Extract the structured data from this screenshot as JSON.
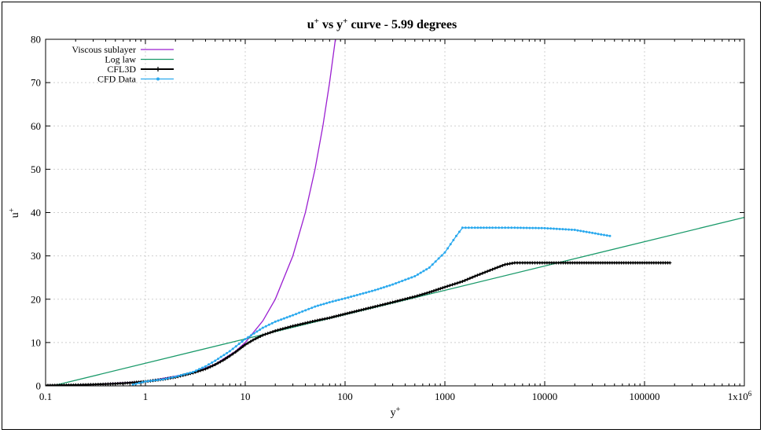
{
  "chart_data": {
    "type": "line",
    "title_main": "u",
    "title_sup1": "+",
    "title_mid": " vs y",
    "title_sup2": "+",
    "title_end": " curve - 5.99 degrees",
    "xlabel_main": "y",
    "xlabel_sup": "+",
    "ylabel_main": "u",
    "ylabel_sup": "+",
    "x_scale": "log",
    "xlim": [
      0.1,
      1000000
    ],
    "ylim": [
      0,
      80
    ],
    "grid": true,
    "legend_position": "top-left",
    "x_ticks": [
      {
        "value": 0.1,
        "label": "0.1"
      },
      {
        "value": 1,
        "label": "1"
      },
      {
        "value": 10,
        "label": "10"
      },
      {
        "value": 100,
        "label": "100"
      },
      {
        "value": 1000,
        "label": "1000"
      },
      {
        "value": 10000,
        "label": "10000"
      },
      {
        "value": 100000,
        "label": "100000"
      }
    ],
    "x_last_tick": {
      "value": 1000000,
      "label_main": "1x10",
      "label_exp": "6"
    },
    "y_ticks": [
      0,
      10,
      20,
      30,
      40,
      50,
      60,
      70,
      80
    ],
    "series": [
      {
        "name": "Viscous sublayer",
        "color": "#9b1fd1",
        "marker": "none",
        "x": [
          0.1,
          0.3,
          1,
          3,
          5,
          8,
          10,
          15,
          20,
          30,
          40,
          50,
          60,
          70,
          80
        ],
        "y": [
          0.1,
          0.3,
          1,
          3,
          5,
          8,
          10,
          15,
          20,
          30,
          40,
          50,
          60,
          70,
          80
        ]
      },
      {
        "name": "Log law",
        "color": "#1a9a6a",
        "marker": "none",
        "x": [
          0.1,
          1000000
        ],
        "y": [
          -0.4,
          38.9
        ]
      },
      {
        "name": "CFL3D",
        "color": "#000000",
        "marker": "plus",
        "x": [
          0.1,
          0.2,
          0.3,
          0.5,
          0.7,
          1,
          1.5,
          2,
          3,
          4,
          5,
          6,
          7,
          8,
          10,
          12,
          15,
          20,
          30,
          50,
          70,
          100,
          200,
          300,
          500,
          700,
          1000,
          1500,
          2000,
          3000,
          4000,
          5000,
          6000,
          10000,
          20000,
          50000,
          100000,
          180000
        ],
        "y": [
          0.1,
          0.2,
          0.3,
          0.5,
          0.7,
          1,
          1.5,
          2,
          3,
          3.9,
          4.9,
          5.9,
          6.9,
          7.8,
          9.5,
          10.6,
          11.7,
          12.7,
          13.8,
          15.0,
          15.7,
          16.6,
          18.3,
          19.3,
          20.6,
          21.6,
          22.8,
          24.1,
          25.3,
          26.9,
          28.0,
          28.4,
          28.4,
          28.4,
          28.4,
          28.4,
          28.4,
          28.4
        ]
      },
      {
        "name": "CFD Data",
        "color": "#2aa9ee",
        "marker": "dot",
        "x": [
          0.75,
          1,
          1.5,
          2,
          3,
          4,
          5,
          7,
          10,
          15,
          20,
          30,
          50,
          70,
          100,
          200,
          300,
          500,
          700,
          1000,
          1300,
          1500,
          2000,
          3000,
          5000,
          10000,
          20000,
          30000,
          45000
        ],
        "y": [
          0.3,
          1.0,
          1.5,
          2.1,
          3.2,
          4.5,
          5.8,
          8.0,
          10.8,
          13.4,
          14.8,
          16.3,
          18.3,
          19.3,
          20.2,
          22.1,
          23.4,
          25.3,
          27.3,
          30.8,
          34.6,
          36.5,
          36.5,
          36.5,
          36.5,
          36.4,
          36.0,
          35.3,
          34.6
        ]
      }
    ]
  }
}
